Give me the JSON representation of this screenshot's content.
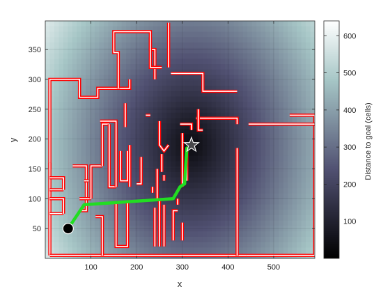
{
  "chart_data": {
    "type": "heatmap",
    "xlabel": "x",
    "ylabel": "y",
    "xlim": [
      0,
      590
    ],
    "ylim": [
      0,
      398
    ],
    "x_ticks": [
      100,
      200,
      300,
      400,
      500
    ],
    "y_ticks": [
      50,
      100,
      150,
      200,
      250,
      300,
      350
    ],
    "grid": true,
    "colormap": "bone",
    "colorbar": {
      "label": "Distance to goal (cells)",
      "lim": [
        0,
        640
      ],
      "ticks": [
        100,
        200,
        300,
        400,
        500,
        600
      ]
    },
    "goal": {
      "x": 320,
      "y": 190,
      "marker": "star"
    },
    "start": {
      "x": 50,
      "y": 50,
      "marker": "circle"
    },
    "path": {
      "color": "#22dd22",
      "points": [
        [
          50,
          50
        ],
        [
          85,
          90
        ],
        [
          280,
          100
        ],
        [
          295,
          120
        ],
        [
          305,
          125
        ],
        [
          310,
          185
        ]
      ]
    },
    "obstacle_color": "#ff0000",
    "obstacles": [
      [
        [
          10,
          150
        ],
        [
          10,
          300
        ],
        [
          75,
          300
        ],
        [
          75,
          270
        ],
        [
          115,
          270
        ],
        [
          115,
          285
        ],
        [
          185,
          285
        ],
        [
          185,
          300
        ]
      ],
      [
        [
          160,
          285
        ],
        [
          160,
          345
        ],
        [
          150,
          345
        ],
        [
          150,
          380
        ],
        [
          230,
          380
        ],
        [
          230,
          350
        ],
        [
          240,
          350
        ],
        [
          240,
          300
        ]
      ],
      [
        [
          230,
          370
        ],
        [
          230,
          320
        ],
        [
          255,
          320
        ]
      ],
      [
        [
          270,
          395
        ],
        [
          270,
          320
        ]
      ],
      [
        [
          275,
          310
        ],
        [
          345,
          310
        ],
        [
          345,
          280
        ],
        [
          420,
          280
        ]
      ],
      [
        [
          10,
          5
        ],
        [
          10,
          160
        ]
      ],
      [
        [
          10,
          5
        ],
        [
          440,
          5
        ]
      ],
      [
        [
          440,
          5
        ],
        [
          590,
          5
        ],
        [
          590,
          240
        ],
        [
          535,
          240
        ]
      ],
      [
        [
          330,
          235
        ],
        [
          420,
          235
        ],
        [
          420,
          225
        ]
      ],
      [
        [
          445,
          225
        ],
        [
          590,
          225
        ]
      ],
      [
        [
          420,
          5
        ],
        [
          420,
          185
        ]
      ],
      [
        [
          335,
          250
        ],
        [
          335,
          215
        ],
        [
          345,
          215
        ]
      ],
      [
        [
          10,
          75
        ],
        [
          40,
          75
        ]
      ],
      [
        [
          40,
          75
        ],
        [
          40,
          100
        ],
        [
          10,
          100
        ]
      ],
      [
        [
          10,
          115
        ],
        [
          40,
          115
        ]
      ],
      [
        [
          40,
          115
        ],
        [
          40,
          135
        ],
        [
          10,
          135
        ]
      ],
      [
        [
          60,
          155
        ],
        [
          90,
          155
        ],
        [
          90,
          80
        ],
        [
          75,
          80
        ]
      ],
      [
        [
          85,
          130
        ],
        [
          95,
          130
        ]
      ],
      [
        [
          110,
          70
        ],
        [
          125,
          70
        ],
        [
          125,
          5
        ]
      ],
      [
        [
          75,
          100
        ],
        [
          100,
          100
        ]
      ],
      [
        [
          100,
          100
        ],
        [
          100,
          155
        ],
        [
          125,
          155
        ]
      ],
      [
        [
          125,
          155
        ],
        [
          125,
          225
        ],
        [
          140,
          225
        ]
      ],
      [
        [
          140,
          225
        ],
        [
          140,
          120
        ],
        [
          155,
          120
        ]
      ],
      [
        [
          155,
          120
        ],
        [
          155,
          230
        ],
        [
          120,
          230
        ]
      ],
      [
        [
          165,
          180
        ],
        [
          165,
          130
        ],
        [
          180,
          130
        ],
        [
          180,
          180
        ]
      ],
      [
        [
          185,
          190
        ],
        [
          185,
          120
        ]
      ],
      [
        [
          200,
          125
        ],
        [
          210,
          125
        ],
        [
          210,
          170
        ]
      ],
      [
        [
          175,
          220
        ],
        [
          175,
          260
        ]
      ],
      [
        [
          220,
          240
        ],
        [
          230,
          240
        ]
      ],
      [
        [
          155,
          95
        ],
        [
          155,
          20
        ],
        [
          180,
          20
        ],
        [
          180,
          95
        ]
      ],
      [
        [
          240,
          20
        ],
        [
          240,
          85
        ]
      ],
      [
        [
          250,
          20
        ],
        [
          250,
          100
        ]
      ],
      [
        [
          260,
          20
        ],
        [
          260,
          90
        ]
      ],
      [
        [
          280,
          30
        ],
        [
          280,
          80
        ],
        [
          290,
          80
        ]
      ],
      [
        [
          300,
          30
        ],
        [
          300,
          60
        ]
      ],
      [
        [
          290,
          90
        ],
        [
          290,
          100
        ]
      ],
      [
        [
          250,
          230
        ],
        [
          250,
          190
        ],
        [
          260,
          180
        ],
        [
          270,
          190
        ]
      ],
      [
        [
          255,
          175
        ],
        [
          255,
          145
        ]
      ],
      [
        [
          260,
          140
        ],
        [
          260,
          130
        ]
      ],
      [
        [
          245,
          100
        ],
        [
          245,
          150
        ]
      ],
      [
        [
          235,
          110
        ],
        [
          235,
          120
        ]
      ],
      [
        [
          300,
          120
        ],
        [
          300,
          210
        ]
      ],
      [
        [
          295,
          225
        ],
        [
          320,
          225
        ],
        [
          320,
          215
        ]
      ],
      [
        [
          305,
          145
        ],
        [
          310,
          145
        ]
      ],
      [
        [
          310,
          130
        ],
        [
          310,
          180
        ]
      ]
    ]
  }
}
